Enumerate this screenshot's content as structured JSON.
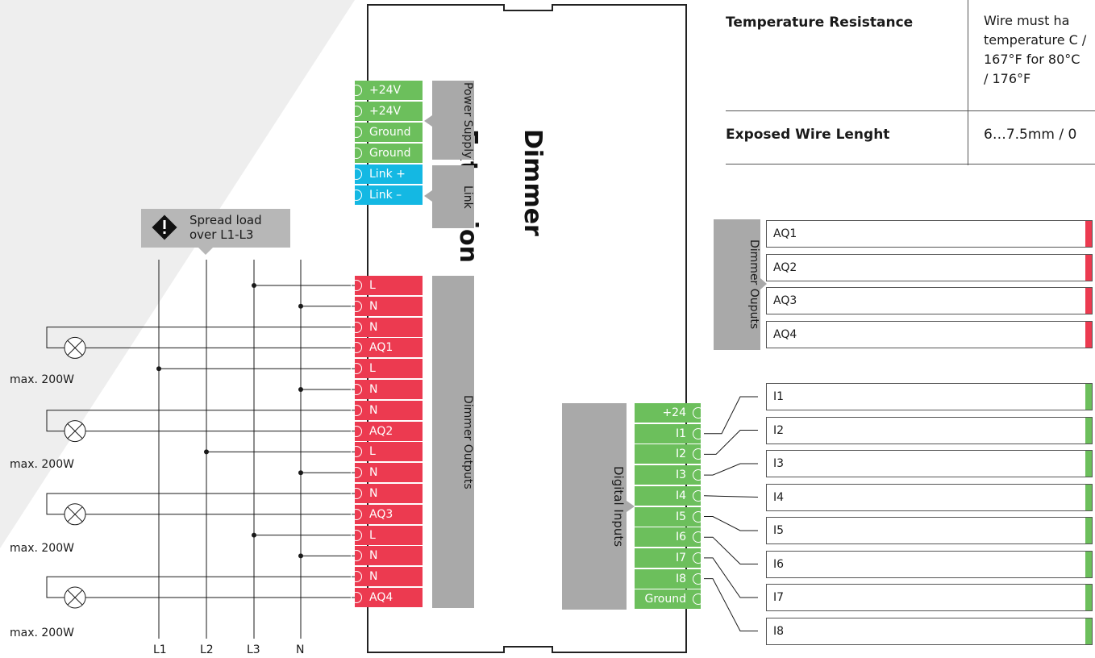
{
  "device": {
    "title": "Dimmer Extension"
  },
  "power_supply": {
    "tag": "Power Supply",
    "terminals": [
      "+24V",
      "+24V",
      "Ground",
      "Ground"
    ]
  },
  "link": {
    "tag": "Link",
    "terminals": [
      "Link +",
      "Link –"
    ]
  },
  "dimmer_outputs": {
    "tag": "Dimmer Outputs",
    "terminals": [
      "L",
      "N",
      "N",
      "AQ1",
      "L",
      "N",
      "N",
      "AQ2",
      "L",
      "N",
      "N",
      "AQ3",
      "L",
      "N",
      "N",
      "AQ4"
    ]
  },
  "digital_inputs": {
    "tag": "Digital Inputs",
    "terminals": [
      "+24",
      "I1",
      "I2",
      "I3",
      "I4",
      "I5",
      "I6",
      "I7",
      "I8",
      "Ground"
    ]
  },
  "warning": {
    "text": "Spread load over L1-L3"
  },
  "loads": [
    "max. 200W",
    "max. 200W",
    "max. 200W",
    "max. 200W"
  ],
  "bus_lines": [
    "L1",
    "L2",
    "L3",
    "N"
  ],
  "specs": {
    "rows": [
      {
        "label": "Temperature Resistance",
        "value": "Wire must ha temperature C / 167°F for 80°C / 176°F"
      },
      {
        "label": "Exposed Wire Lenght",
        "value": "6…7.5mm / 0"
      }
    ]
  },
  "dimmer_ouputs_panel": {
    "tag": "Dimmer Ouputs",
    "items": [
      "AQ1",
      "AQ2",
      "AQ3",
      "AQ4"
    ]
  },
  "inputs_panel": {
    "items": [
      "I1",
      "I2",
      "I3",
      "I4",
      "I5",
      "I6",
      "I7",
      "I8"
    ]
  },
  "colors": {
    "green": "#6cbf5c",
    "blue": "#14b8e3",
    "red": "#ec3a50",
    "grey": "#a9a9a9"
  }
}
